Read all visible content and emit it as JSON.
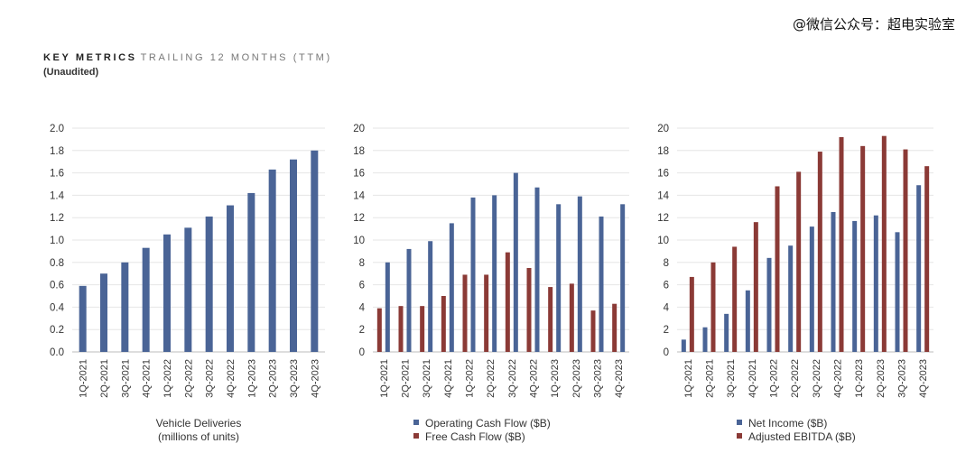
{
  "watermark": "@微信公众号：超电实验室",
  "header": {
    "title_bold": "KEY METRICS",
    "title_light": "TRAILING 12 MONTHS (TTM)",
    "subtitle": "(Unaudited)"
  },
  "colors": {
    "blue": "#4a6496",
    "red": "#8b3a36",
    "grid": "#e6e6e6",
    "axis": "#555555"
  },
  "chart_data": [
    {
      "type": "bar",
      "categories": [
        "1Q-2021",
        "2Q-2021",
        "3Q-2021",
        "4Q-2021",
        "1Q-2022",
        "2Q-2022",
        "3Q-2022",
        "4Q-2022",
        "1Q-2023",
        "2Q-2023",
        "3Q-2023",
        "4Q-2023"
      ],
      "series": [
        {
          "name": "",
          "color": "#4a6496",
          "values": [
            0.59,
            0.7,
            0.8,
            0.93,
            1.05,
            1.11,
            1.21,
            1.31,
            1.42,
            1.63,
            1.72,
            1.8
          ]
        }
      ],
      "ylim": [
        0,
        2.0
      ],
      "yticks": [
        "0.0",
        "0.2",
        "0.4",
        "0.6",
        "0.8",
        "1.0",
        "1.2",
        "1.4",
        "1.6",
        "1.8",
        "2.0"
      ],
      "xlabel_lines": [
        "Vehicle Deliveries",
        "(millions of units)"
      ],
      "grid": true
    },
    {
      "type": "bar",
      "categories": [
        "1Q-2021",
        "2Q-2021",
        "3Q-2021",
        "4Q-2021",
        "1Q-2022",
        "2Q-2022",
        "3Q-2022",
        "4Q-2022",
        "1Q-2023",
        "2Q-2023",
        "3Q-2023",
        "4Q-2023"
      ],
      "series": [
        {
          "name": "Free Cash Flow ($B)",
          "color": "#8b3a36",
          "values": [
            3.9,
            4.1,
            4.1,
            5.0,
            6.9,
            6.9,
            8.9,
            7.5,
            5.8,
            6.1,
            3.7,
            4.3
          ]
        },
        {
          "name": "Operating Cash Flow ($B)",
          "color": "#4a6496",
          "values": [
            8.0,
            9.2,
            9.9,
            11.5,
            13.8,
            14.0,
            16.0,
            14.7,
            13.2,
            13.9,
            12.1,
            13.2
          ]
        }
      ],
      "legend": [
        {
          "name": "Operating Cash Flow ($B)",
          "color": "#4a6496"
        },
        {
          "name": "Free Cash Flow ($B)",
          "color": "#8b3a36"
        }
      ],
      "ylim": [
        0,
        20
      ],
      "yticks": [
        "0",
        "2",
        "4",
        "6",
        "8",
        "10",
        "12",
        "14",
        "16",
        "18",
        "20"
      ],
      "grid": true
    },
    {
      "type": "bar",
      "categories": [
        "1Q-2021",
        "2Q-2021",
        "3Q-2021",
        "4Q-2021",
        "1Q-2022",
        "2Q-2022",
        "3Q-2022",
        "4Q-2022",
        "1Q-2023",
        "2Q-2023",
        "3Q-2023",
        "4Q-2023"
      ],
      "series": [
        {
          "name": "Net Income ($B)",
          "color": "#4a6496",
          "values": [
            1.1,
            2.2,
            3.4,
            5.5,
            8.4,
            9.5,
            11.2,
            12.5,
            11.7,
            12.2,
            10.7,
            14.9
          ]
        },
        {
          "name": "Adjusted EBITDA ($B)",
          "color": "#8b3a36",
          "values": [
            6.7,
            8.0,
            9.4,
            11.6,
            14.8,
            16.1,
            17.9,
            19.2,
            18.4,
            19.3,
            18.1,
            16.6
          ]
        }
      ],
      "legend": [
        {
          "name": "Net Income ($B)",
          "color": "#4a6496"
        },
        {
          "name": "Adjusted EBITDA ($B)",
          "color": "#8b3a36"
        }
      ],
      "ylim": [
        0,
        20
      ],
      "yticks": [
        "0",
        "2",
        "4",
        "6",
        "8",
        "10",
        "12",
        "14",
        "16",
        "18",
        "20"
      ],
      "grid": true
    }
  ]
}
